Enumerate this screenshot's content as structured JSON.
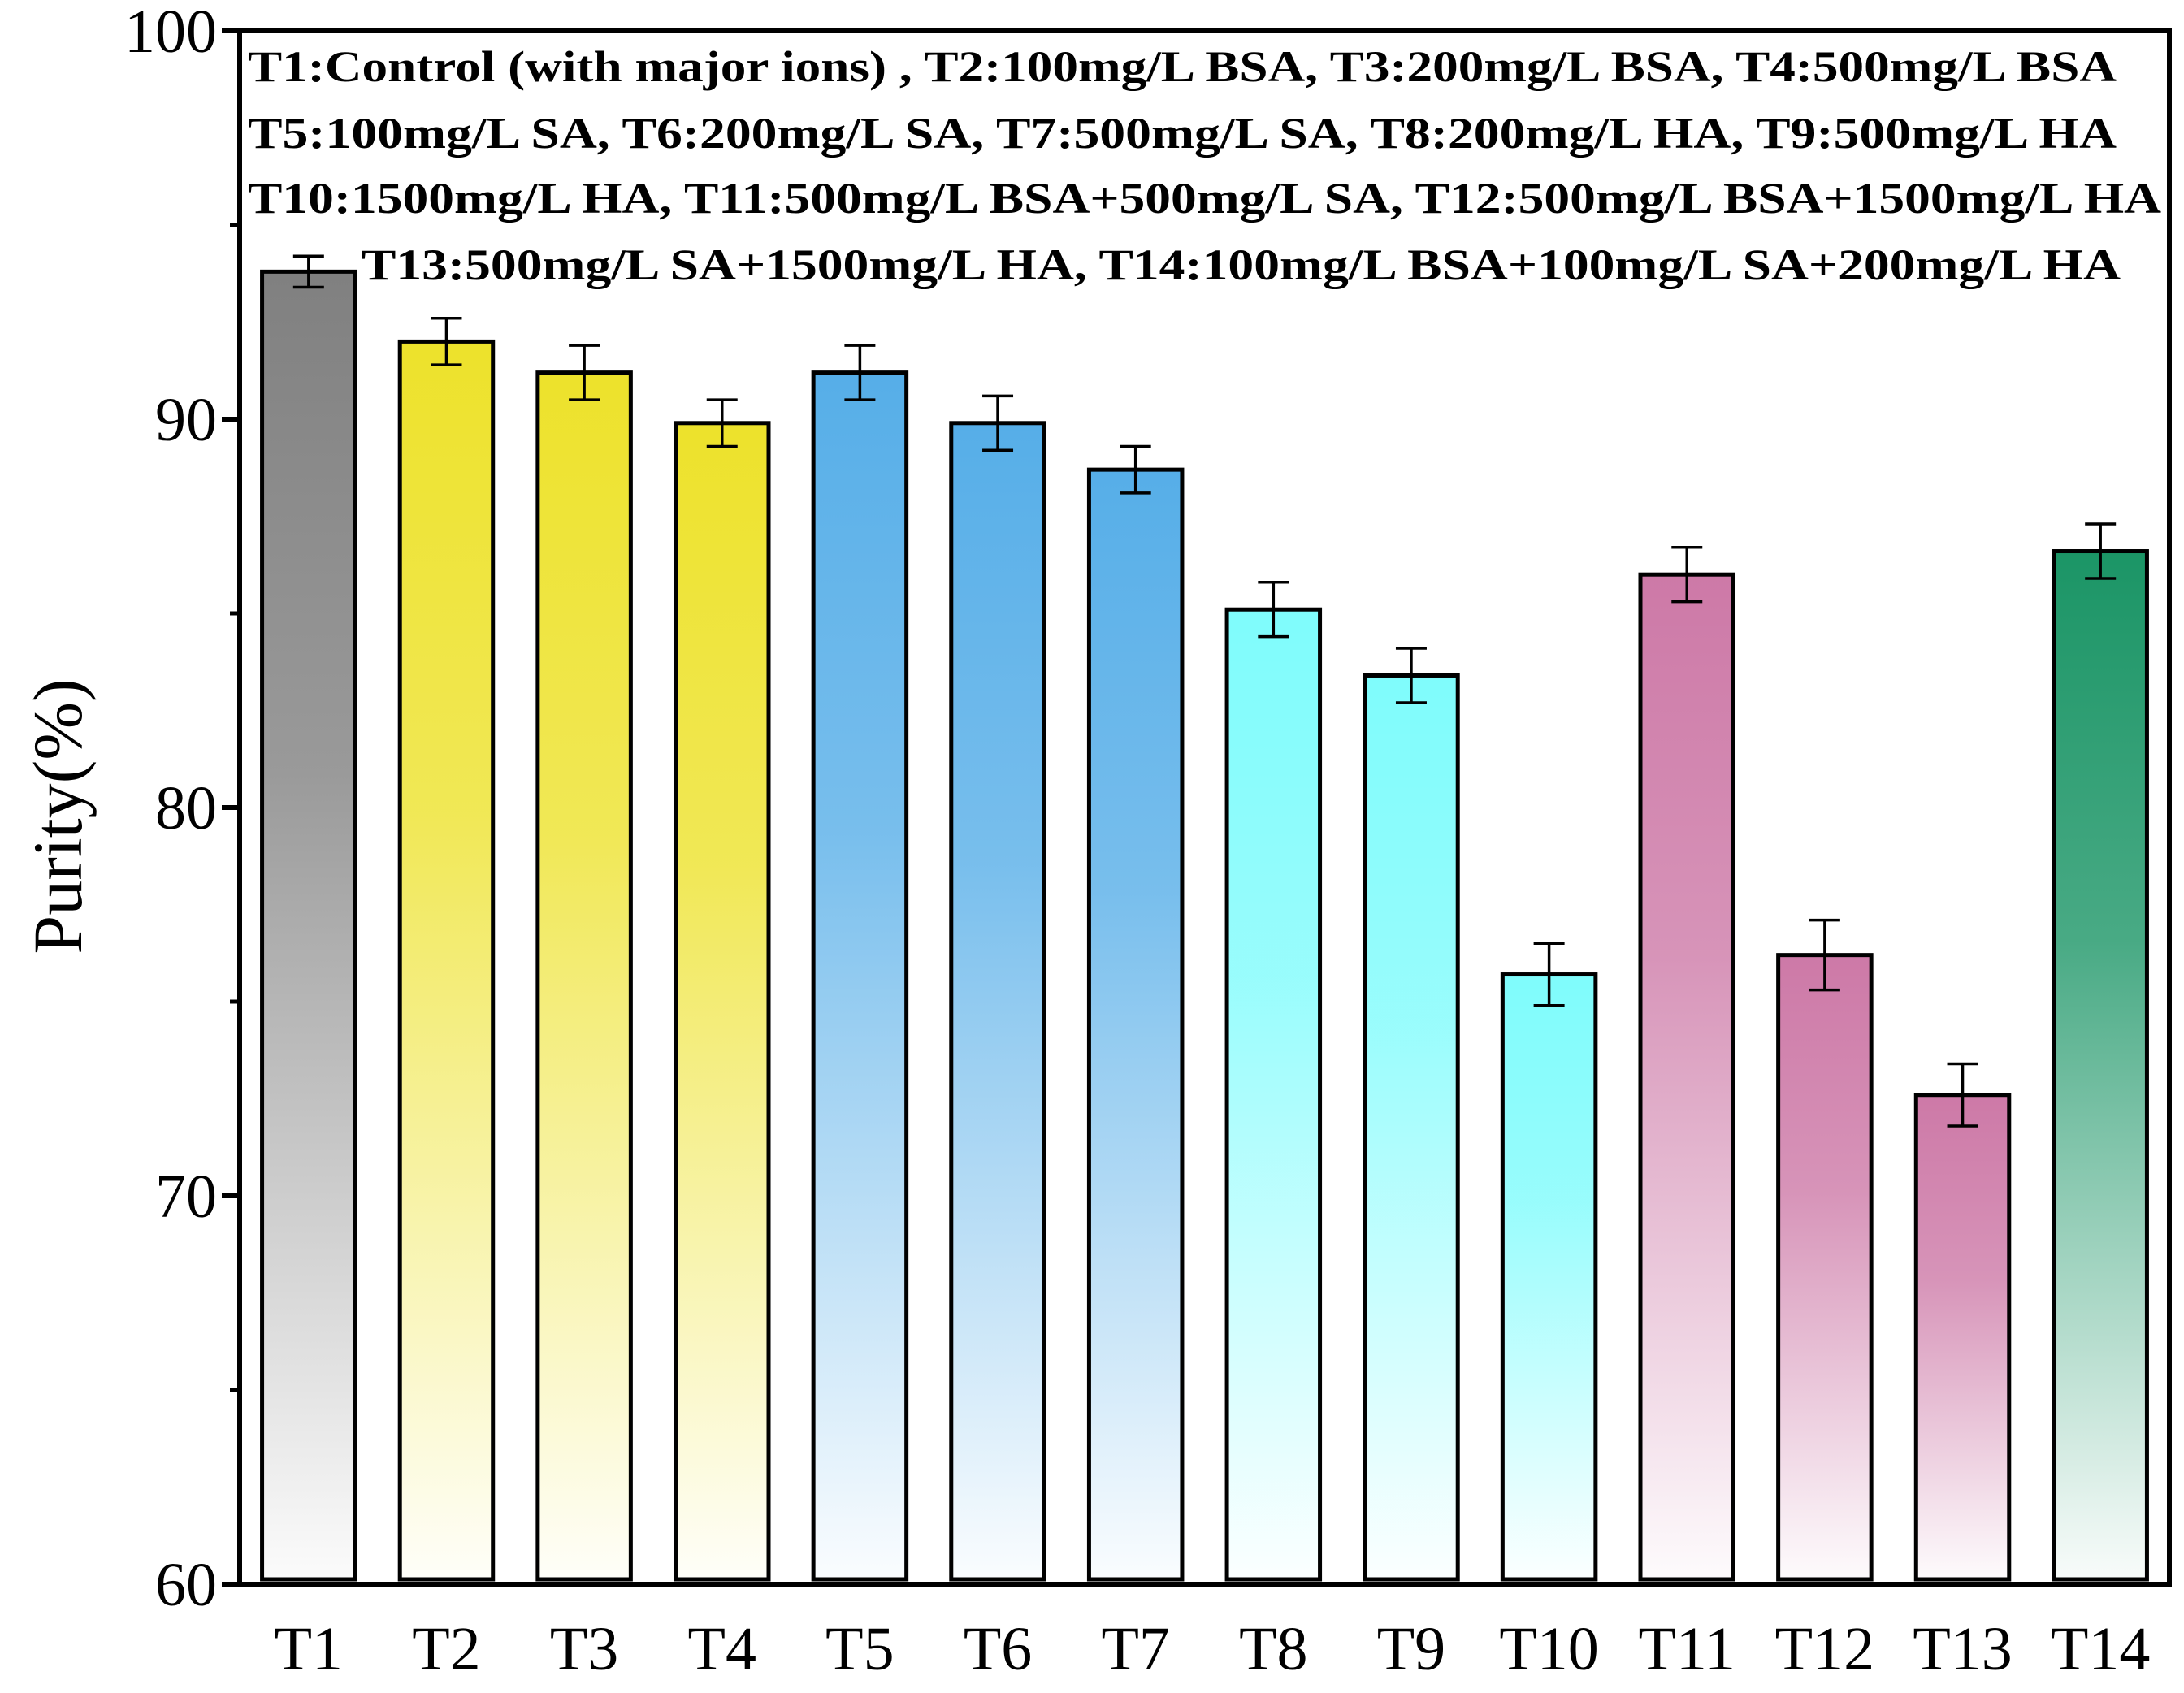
{
  "chart_data": {
    "type": "bar",
    "title": "",
    "xlabel": "",
    "ylabel": "Purity(%)",
    "ylim": [
      60,
      100
    ],
    "yticks": [
      "60",
      "70",
      "80",
      "90",
      "100"
    ],
    "grid": false,
    "categories": [
      "T1",
      "T2",
      "T3",
      "T4",
      "T5",
      "T6",
      "T7",
      "T8",
      "T9",
      "T10",
      "T11",
      "T12",
      "T13",
      "T14"
    ],
    "values": [
      93.8,
      92.0,
      91.2,
      89.9,
      91.2,
      89.9,
      88.7,
      85.1,
      83.4,
      75.7,
      86.0,
      76.2,
      72.6,
      86.6
    ],
    "errors": [
      0.4,
      0.6,
      0.7,
      0.6,
      0.7,
      0.7,
      0.6,
      0.7,
      0.7,
      0.8,
      0.7,
      0.9,
      0.8,
      0.7
    ],
    "colors": [
      "#808080",
      "#ede22b",
      "#ede22b",
      "#ede22b",
      "#56aee8",
      "#56aee8",
      "#56aee8",
      "#7ffcfc",
      "#7ffcfc",
      "#7ffcfc",
      "#cd79a7",
      "#cd79a7",
      "#cd79a7",
      "#1b9566"
    ],
    "legend": [
      "T1:Control (with major ions) , T2:100mg/L BSA, T3:200mg/L BSA, T4:500mg/L BSA",
      "T5:100mg/L SA, T6:200mg/L SA, T7:500mg/L SA, T8:200mg/L HA, T9:500mg/L HA",
      "T10:1500mg/L HA, T11:500mg/L BSA+500mg/L SA, T12:500mg/L BSA+1500mg/L HA",
      "T13:500mg/L SA+1500mg/L HA, T14:100mg/L BSA+100mg/L SA+200mg/L HA"
    ],
    "legend_position": "top"
  }
}
